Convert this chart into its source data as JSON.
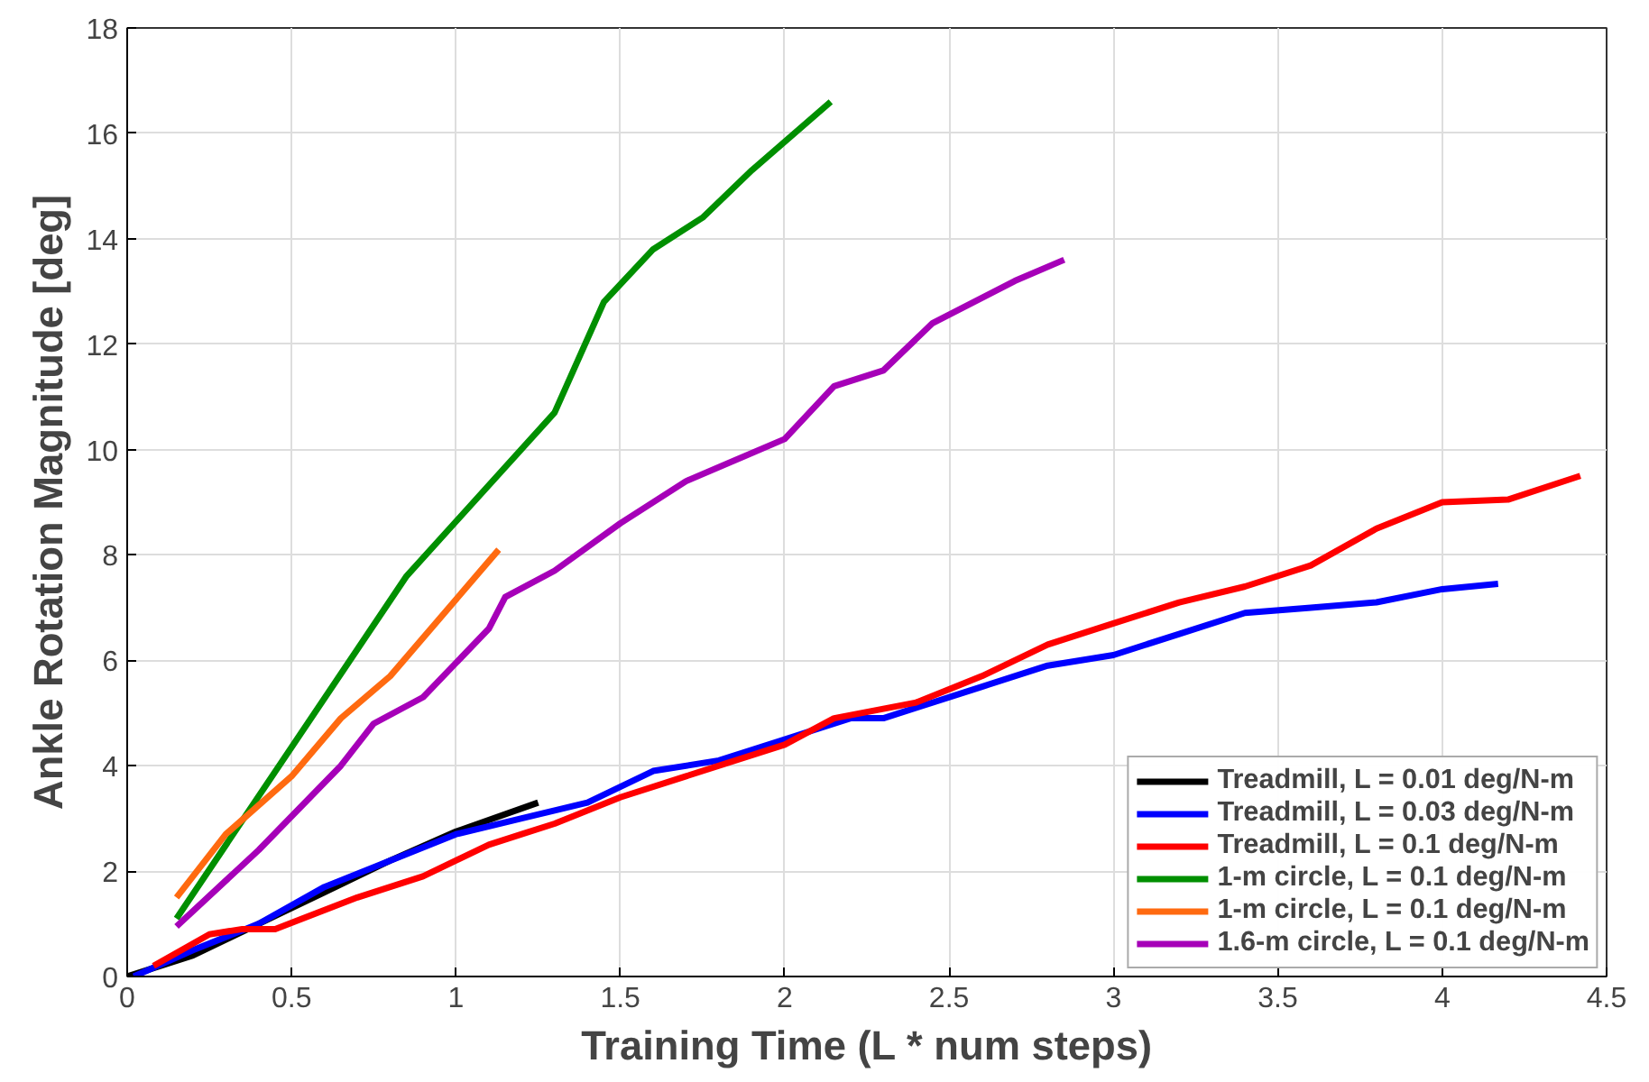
{
  "chart_data": {
    "type": "line",
    "xlabel": "Training Time (L * num steps)",
    "ylabel": "Ankle Rotation Magnitude [deg]",
    "xlim": [
      0,
      4.5
    ],
    "xticks": [
      0,
      0.5,
      1,
      1.5,
      2,
      2.5,
      3,
      3.5,
      4,
      4.5
    ],
    "ylim": [
      0,
      18
    ],
    "yticks": [
      0,
      2,
      4,
      6,
      8,
      10,
      12,
      14,
      16,
      18
    ],
    "grid": true,
    "legend": "bottom right",
    "line_style": "solid",
    "series": [
      {
        "name": "Treadmill, L = 0.01 deg/N-m",
        "color": "#000000",
        "x": [
          0,
          0.2,
          0.4,
          0.6,
          0.8,
          1.0,
          1.25
        ],
        "values": [
          0,
          0.4,
          1.0,
          1.6,
          2.2,
          2.75,
          3.3
        ]
      },
      {
        "name": "Treadmill, L = 0.03 deg/N-m",
        "color": "#0000ff",
        "x": [
          0.02,
          0.2,
          0.4,
          0.6,
          0.8,
          1.0,
          1.2,
          1.4,
          1.6,
          1.8,
          2.0,
          2.2,
          2.3,
          2.4,
          2.6,
          2.8,
          3.0,
          3.2,
          3.4,
          3.6,
          3.8,
          4.0,
          4.17
        ],
        "values": [
          0,
          0.5,
          1.0,
          1.7,
          2.2,
          2.7,
          3.0,
          3.3,
          3.9,
          4.1,
          4.5,
          4.9,
          4.9,
          5.1,
          5.5,
          5.9,
          6.1,
          6.5,
          6.9,
          7.0,
          7.1,
          7.35,
          7.45
        ]
      },
      {
        "name": "Treadmill, L = 0.1 deg/N-m",
        "color": "#ff0000",
        "x": [
          0.08,
          0.25,
          0.35,
          0.45,
          0.7,
          0.9,
          1.1,
          1.2,
          1.3,
          1.5,
          1.7,
          2.0,
          2.15,
          2.4,
          2.6,
          2.8,
          3.0,
          3.2,
          3.4,
          3.6,
          3.8,
          4.0,
          4.2,
          4.42
        ],
        "values": [
          0.2,
          0.8,
          0.9,
          0.9,
          1.5,
          1.9,
          2.5,
          2.7,
          2.9,
          3.4,
          3.8,
          4.4,
          4.9,
          5.2,
          5.7,
          6.3,
          6.7,
          7.1,
          7.4,
          7.8,
          8.5,
          9.0,
          9.05,
          9.5
        ]
      },
      {
        "name": "1-m circle, L = 0.1 deg/N-m",
        "color": "#008f00",
        "x": [
          0.15,
          0.85,
          1.3,
          1.45,
          1.6,
          1.75,
          1.9,
          2.14
        ],
        "values": [
          1.1,
          7.6,
          10.7,
          12.8,
          13.8,
          14.4,
          15.3,
          16.6
        ]
      },
      {
        "name": "1-m circle, L = 0.1 deg/N-m",
        "color": "#ff6a10",
        "x": [
          0.15,
          0.3,
          0.5,
          0.65,
          0.8,
          1.13
        ],
        "values": [
          1.5,
          2.7,
          3.8,
          4.9,
          5.7,
          8.1
        ]
      },
      {
        "name": "1.6-m circle, L = 0.1 deg/N-m",
        "color": "#a600b8",
        "x": [
          0.15,
          0.4,
          0.65,
          0.75,
          0.9,
          1.1,
          1.15,
          1.3,
          1.5,
          1.7,
          2.0,
          2.15,
          2.3,
          2.45,
          2.7,
          2.85
        ],
        "values": [
          0.95,
          2.4,
          4.0,
          4.8,
          5.3,
          6.6,
          7.2,
          7.7,
          8.6,
          9.4,
          10.2,
          11.2,
          11.5,
          12.4,
          13.2,
          13.6
        ]
      }
    ]
  }
}
